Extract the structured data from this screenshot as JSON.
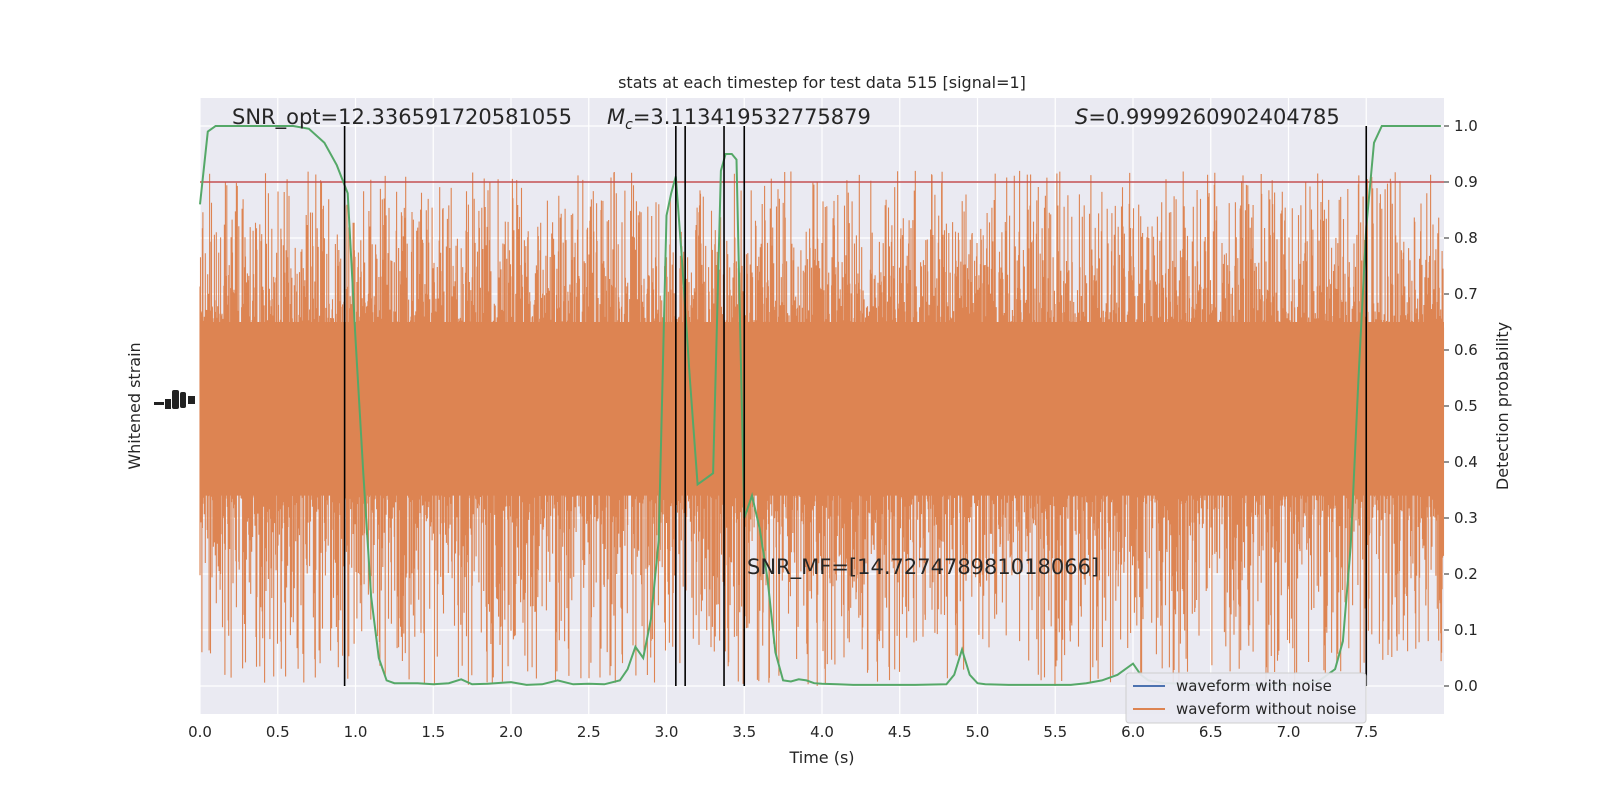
{
  "chart_data": {
    "type": "line",
    "title": "stats at each timestep for test data 515 [signal=1]",
    "xlabel": "Time (s)",
    "ylabel_left": "Whitened strain",
    "ylabel_right": "Detection probability",
    "xlim": [
      0.0,
      8.0
    ],
    "ylim_right": [
      -0.05,
      1.05
    ],
    "x_ticks": [
      "0.0",
      "0.5",
      "1.0",
      "1.5",
      "2.0",
      "2.5",
      "3.0",
      "3.5",
      "4.0",
      "4.5",
      "5.0",
      "5.5",
      "6.0",
      "6.5",
      "7.0",
      "7.5"
    ],
    "y_ticks_right": [
      "0.0",
      "0.1",
      "0.2",
      "0.3",
      "0.4",
      "0.5",
      "0.6",
      "0.7",
      "0.8",
      "0.9",
      "1.0"
    ],
    "grid": true,
    "legend_position": "lower-right",
    "series": [
      {
        "name": "waveform with noise",
        "color": "#4c72b0",
        "values": []
      },
      {
        "name": "waveform without noise",
        "color": "#dd8452",
        "values": []
      }
    ],
    "noise_band": {
      "center": 0.5,
      "typical_low": 0.31,
      "typical_high": 0.7,
      "peak_high": 0.92,
      "peak_low": 0.0
    },
    "detection_probability": {
      "color": "#55a868",
      "x": [
        0.0,
        0.05,
        0.1,
        0.2,
        0.3,
        0.5,
        0.6,
        0.7,
        0.8,
        0.88,
        0.95,
        1.0,
        1.05,
        1.1,
        1.15,
        1.2,
        1.25,
        1.3,
        1.4,
        1.5,
        1.6,
        1.68,
        1.75,
        1.85,
        2.0,
        2.1,
        2.2,
        2.3,
        2.4,
        2.5,
        2.6,
        2.7,
        2.75,
        2.8,
        2.85,
        2.9,
        2.95,
        3.0,
        3.03,
        3.06,
        3.1,
        3.15,
        3.2,
        3.25,
        3.3,
        3.35,
        3.38,
        3.42,
        3.45,
        3.5,
        3.55,
        3.6,
        3.65,
        3.7,
        3.75,
        3.8,
        3.85,
        3.9,
        3.95,
        4.0,
        4.1,
        4.2,
        4.4,
        4.6,
        4.8,
        4.85,
        4.9,
        4.95,
        5.0,
        5.05,
        5.2,
        5.4,
        5.6,
        5.7,
        5.8,
        5.9,
        6.0,
        6.05,
        6.1,
        6.2,
        6.5,
        6.8,
        7.0,
        7.2,
        7.3,
        7.35,
        7.4,
        7.45,
        7.5,
        7.55,
        7.6,
        7.65,
        7.7,
        7.8,
        7.9,
        7.98
      ],
      "y": [
        0.86,
        0.99,
        1.0,
        1.0,
        1.0,
        1.0,
        1.0,
        0.995,
        0.97,
        0.93,
        0.88,
        0.62,
        0.38,
        0.16,
        0.05,
        0.01,
        0.005,
        0.005,
        0.005,
        0.003,
        0.005,
        0.012,
        0.003,
        0.004,
        0.007,
        0.002,
        0.003,
        0.01,
        0.003,
        0.004,
        0.003,
        0.01,
        0.03,
        0.07,
        0.05,
        0.12,
        0.26,
        0.84,
        0.88,
        0.91,
        0.76,
        0.55,
        0.36,
        0.37,
        0.38,
        0.92,
        0.95,
        0.95,
        0.94,
        0.3,
        0.34,
        0.28,
        0.19,
        0.06,
        0.01,
        0.008,
        0.012,
        0.01,
        0.005,
        0.004,
        0.003,
        0.002,
        0.002,
        0.002,
        0.003,
        0.02,
        0.065,
        0.02,
        0.005,
        0.003,
        0.002,
        0.002,
        0.002,
        0.005,
        0.01,
        0.02,
        0.04,
        0.02,
        0.01,
        0.005,
        0.003,
        0.002,
        0.002,
        0.01,
        0.03,
        0.08,
        0.25,
        0.55,
        0.82,
        0.97,
        1.0,
        1.0,
        1.0,
        1.0,
        1.0,
        1.0
      ]
    },
    "threshold": {
      "value": 0.9,
      "color": "#c44e52"
    },
    "vertical_markers": [
      0.93,
      3.06,
      3.12,
      3.37,
      3.5,
      7.5
    ],
    "annotations": {
      "snr_opt": "SNR_opt=12.336591720581055",
      "mc_symbol": "M",
      "mc_sub": "c",
      "mc_value": "=3.113419532775879",
      "s_symbol": "S",
      "s_value": "=0.9999260902404785",
      "snr_mf": "SNR_MF=[14.727478981018066]"
    }
  }
}
